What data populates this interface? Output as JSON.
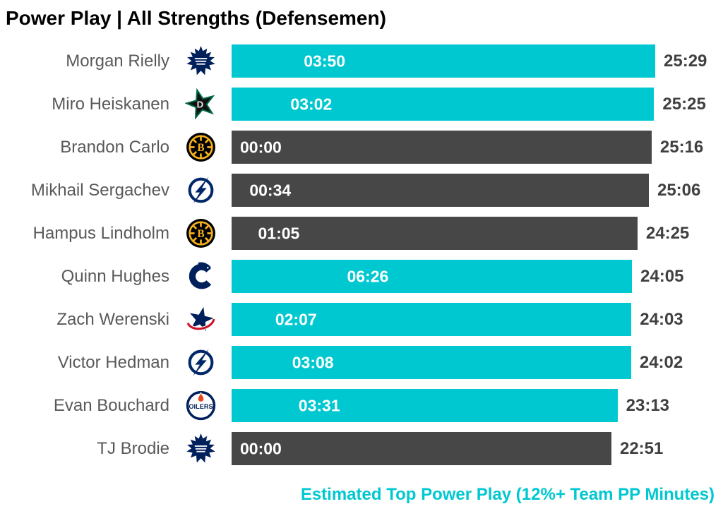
{
  "title": "Power Play | All Strengths (Defensemen)",
  "footer": "Estimated Top Power Play (12%+ Team PP Minutes)",
  "colors": {
    "highlight_teal": "#00C8D0",
    "muted_dark": "#474747",
    "player_name_text": "#595959",
    "toi_value_text": "#404040",
    "bar_label_text": "#FFFFFF",
    "title_text": "#000000"
  },
  "chart_data": {
    "type": "bar",
    "orientation": "horizontal",
    "bar_length_metric": "toi",
    "bar_label_metric": "pp_time",
    "axis_max": "25:29",
    "legend_note": "Teal bars = Estimated Top Power Play (12%+ Team PP Minutes); dark bars = others",
    "bar_colors": {
      "top": "#00C8D0",
      "other": "#474747"
    },
    "players": [
      {
        "name": "Morgan Rielly",
        "team": "Toronto Maple Leafs",
        "icon": "maple-leafs-logo",
        "pp_time": "03:50",
        "toi": "25:29",
        "top_power_play": true
      },
      {
        "name": "Miro Heiskanen",
        "team": "Dallas Stars",
        "icon": "stars-logo",
        "pp_time": "03:02",
        "toi": "25:25",
        "top_power_play": true
      },
      {
        "name": "Brandon Carlo",
        "team": "Boston Bruins",
        "icon": "bruins-logo",
        "pp_time": "00:00",
        "toi": "25:16",
        "top_power_play": false
      },
      {
        "name": "Mikhail Sergachev",
        "team": "Tampa Bay Lightning",
        "icon": "lightning-logo",
        "pp_time": "00:34",
        "toi": "25:06",
        "top_power_play": false
      },
      {
        "name": "Hampus Lindholm",
        "team": "Boston Bruins",
        "icon": "bruins-logo",
        "pp_time": "01:05",
        "toi": "24:25",
        "top_power_play": false
      },
      {
        "name": "Quinn Hughes",
        "team": "Vancouver Canucks",
        "icon": "canucks-logo",
        "pp_time": "06:26",
        "toi": "24:05",
        "top_power_play": true
      },
      {
        "name": "Zach Werenski",
        "team": "Columbus Blue Jackets",
        "icon": "blue-jackets-logo",
        "pp_time": "02:07",
        "toi": "24:03",
        "top_power_play": true
      },
      {
        "name": "Victor Hedman",
        "team": "Tampa Bay Lightning",
        "icon": "lightning-logo",
        "pp_time": "03:08",
        "toi": "24:02",
        "top_power_play": true
      },
      {
        "name": "Evan Bouchard",
        "team": "Edmonton Oilers",
        "icon": "oilers-logo",
        "pp_time": "03:31",
        "toi": "23:13",
        "top_power_play": true
      },
      {
        "name": "TJ Brodie",
        "team": "Toronto Maple Leafs",
        "icon": "maple-leafs-logo",
        "pp_time": "00:00",
        "toi": "22:51",
        "top_power_play": false
      }
    ]
  }
}
